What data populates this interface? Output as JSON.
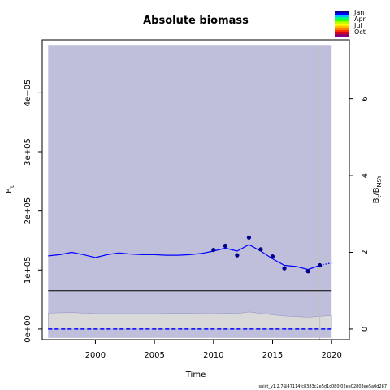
{
  "chart_data": {
    "type": "line",
    "title": "Absolute biomass",
    "xlabel": "Time",
    "ylabel": "B",
    "ylabel_sub": "t",
    "y2label_main": "B",
    "y2label_sub1": "t",
    "y2label_div": "/B",
    "y2label_sub2": "MSY",
    "xlim": [
      1995.5,
      2021.5
    ],
    "ylim": [
      -18000,
      490000
    ],
    "y2_ratio_per_unit": 65000,
    "x_ticks": [
      2000,
      2005,
      2010,
      2015,
      2020
    ],
    "x_tick_labels": [
      "2000",
      "2005",
      "2010",
      "2015",
      "2020"
    ],
    "y_ticks": [
      0,
      100000,
      200000,
      300000,
      400000
    ],
    "y_tick_labels": [
      "0e+00",
      "1e+05",
      "2e+05",
      "3e+05",
      "4e+05"
    ],
    "y2_ticks": [
      0,
      2,
      4,
      6
    ],
    "y2_tick_labels": [
      "0",
      "2",
      "4",
      "6"
    ],
    "ci_band": {
      "x_start": 1996,
      "x_end": 2020,
      "lower": -15000,
      "upper": 480000,
      "color": "#bfbfdc"
    },
    "bmsy_band": {
      "x": [
        1996,
        1998,
        2000,
        2005,
        2010,
        2012,
        2013,
        2015,
        2016,
        2018,
        2020
      ],
      "lower": [
        0,
        0,
        0,
        0,
        0,
        0,
        0,
        0,
        0,
        0,
        0
      ],
      "upper": [
        27000,
        28000,
        26000,
        26000,
        27000,
        26000,
        29000,
        24000,
        22000,
        20000,
        23000
      ],
      "color": "#d9d9d9"
    },
    "bmsy_line": 65000,
    "zero_line": 0,
    "series": [
      {
        "name": "Estimated biomass",
        "x": [
          1996,
          1997,
          1998,
          1999,
          2000,
          2001,
          2002,
          2003,
          2004,
          2005,
          2006,
          2007,
          2008,
          2009,
          2010,
          2011,
          2012,
          2013,
          2014,
          2015,
          2016,
          2017,
          2018,
          2019
        ],
        "values": [
          124000,
          126000,
          130000,
          126000,
          121000,
          126000,
          129000,
          127000,
          126000,
          126000,
          125000,
          125000,
          126000,
          128000,
          132000,
          137000,
          132000,
          143000,
          132000,
          119000,
          108000,
          106000,
          101000,
          108000
        ],
        "color": "#0000ff"
      },
      {
        "name": "Predicted biomass",
        "x": [
          2019,
          2020
        ],
        "values": [
          108000,
          112000
        ],
        "color": "#0000ff",
        "dashed": true
      }
    ],
    "observations": {
      "x": [
        2010,
        2011,
        2012,
        2013,
        2014,
        2015,
        2016,
        2018,
        2019
      ],
      "values": [
        134000,
        141000,
        125000,
        155000,
        135000,
        123000,
        103000,
        98000,
        108000
      ],
      "color": "#00008b"
    },
    "vertical_marker_x": 2019,
    "legend": {
      "placement": "top-right",
      "entries": [
        "Jan",
        "Apr",
        "Jul",
        "Oct"
      ],
      "colors": [
        "#000080",
        "#0000ff",
        "#00c0ff",
        "#00ff80",
        "#40ff00",
        "#c0ff00",
        "#ffff00",
        "#ffc000",
        "#ff8000",
        "#ff3000",
        "#d00020",
        "#800080"
      ]
    },
    "footer": "spict_v1.2.7@47114fc8383c2e5d1c080f02ee02803ee5a0d287",
    "grid": false
  }
}
